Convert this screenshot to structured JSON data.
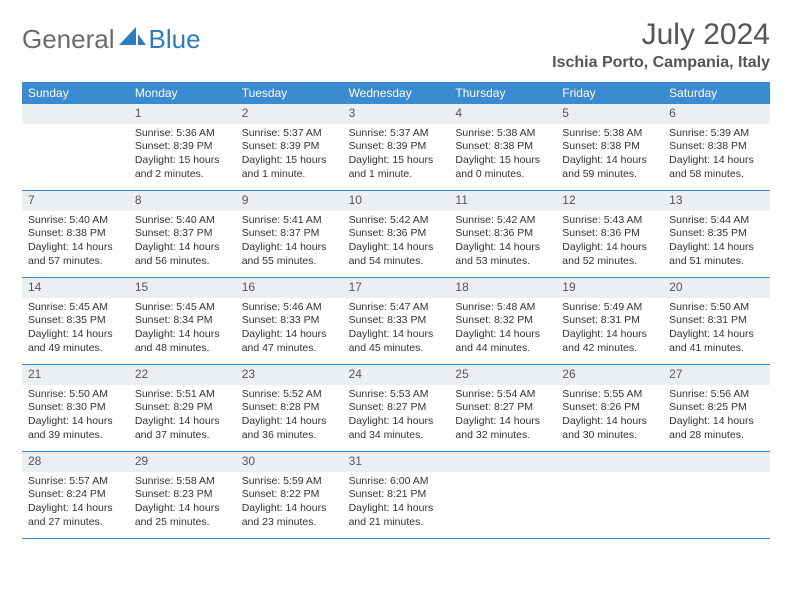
{
  "brand": {
    "text1": "General",
    "text2": "Blue",
    "logo_fill": "#2f7bc0"
  },
  "header": {
    "month_title": "July 2024",
    "location": "Ischia Porto, Campania, Italy"
  },
  "colors": {
    "header_bg": "#3a8bd0",
    "header_text": "#ffffff",
    "daynum_bg": "#eceff1",
    "row_divider": "#3a8bd0",
    "body_text": "#333333",
    "title_text": "#555555"
  },
  "weekdays": [
    "Sunday",
    "Monday",
    "Tuesday",
    "Wednesday",
    "Thursday",
    "Friday",
    "Saturday"
  ],
  "weeks": [
    [
      {
        "num": "",
        "sunrise": "",
        "sunset": "",
        "daylight": ""
      },
      {
        "num": "1",
        "sunrise": "Sunrise: 5:36 AM",
        "sunset": "Sunset: 8:39 PM",
        "daylight": "Daylight: 15 hours and 2 minutes."
      },
      {
        "num": "2",
        "sunrise": "Sunrise: 5:37 AM",
        "sunset": "Sunset: 8:39 PM",
        "daylight": "Daylight: 15 hours and 1 minute."
      },
      {
        "num": "3",
        "sunrise": "Sunrise: 5:37 AM",
        "sunset": "Sunset: 8:39 PM",
        "daylight": "Daylight: 15 hours and 1 minute."
      },
      {
        "num": "4",
        "sunrise": "Sunrise: 5:38 AM",
        "sunset": "Sunset: 8:38 PM",
        "daylight": "Daylight: 15 hours and 0 minutes."
      },
      {
        "num": "5",
        "sunrise": "Sunrise: 5:38 AM",
        "sunset": "Sunset: 8:38 PM",
        "daylight": "Daylight: 14 hours and 59 minutes."
      },
      {
        "num": "6",
        "sunrise": "Sunrise: 5:39 AM",
        "sunset": "Sunset: 8:38 PM",
        "daylight": "Daylight: 14 hours and 58 minutes."
      }
    ],
    [
      {
        "num": "7",
        "sunrise": "Sunrise: 5:40 AM",
        "sunset": "Sunset: 8:38 PM",
        "daylight": "Daylight: 14 hours and 57 minutes."
      },
      {
        "num": "8",
        "sunrise": "Sunrise: 5:40 AM",
        "sunset": "Sunset: 8:37 PM",
        "daylight": "Daylight: 14 hours and 56 minutes."
      },
      {
        "num": "9",
        "sunrise": "Sunrise: 5:41 AM",
        "sunset": "Sunset: 8:37 PM",
        "daylight": "Daylight: 14 hours and 55 minutes."
      },
      {
        "num": "10",
        "sunrise": "Sunrise: 5:42 AM",
        "sunset": "Sunset: 8:36 PM",
        "daylight": "Daylight: 14 hours and 54 minutes."
      },
      {
        "num": "11",
        "sunrise": "Sunrise: 5:42 AM",
        "sunset": "Sunset: 8:36 PM",
        "daylight": "Daylight: 14 hours and 53 minutes."
      },
      {
        "num": "12",
        "sunrise": "Sunrise: 5:43 AM",
        "sunset": "Sunset: 8:36 PM",
        "daylight": "Daylight: 14 hours and 52 minutes."
      },
      {
        "num": "13",
        "sunrise": "Sunrise: 5:44 AM",
        "sunset": "Sunset: 8:35 PM",
        "daylight": "Daylight: 14 hours and 51 minutes."
      }
    ],
    [
      {
        "num": "14",
        "sunrise": "Sunrise: 5:45 AM",
        "sunset": "Sunset: 8:35 PM",
        "daylight": "Daylight: 14 hours and 49 minutes."
      },
      {
        "num": "15",
        "sunrise": "Sunrise: 5:45 AM",
        "sunset": "Sunset: 8:34 PM",
        "daylight": "Daylight: 14 hours and 48 minutes."
      },
      {
        "num": "16",
        "sunrise": "Sunrise: 5:46 AM",
        "sunset": "Sunset: 8:33 PM",
        "daylight": "Daylight: 14 hours and 47 minutes."
      },
      {
        "num": "17",
        "sunrise": "Sunrise: 5:47 AM",
        "sunset": "Sunset: 8:33 PM",
        "daylight": "Daylight: 14 hours and 45 minutes."
      },
      {
        "num": "18",
        "sunrise": "Sunrise: 5:48 AM",
        "sunset": "Sunset: 8:32 PM",
        "daylight": "Daylight: 14 hours and 44 minutes."
      },
      {
        "num": "19",
        "sunrise": "Sunrise: 5:49 AM",
        "sunset": "Sunset: 8:31 PM",
        "daylight": "Daylight: 14 hours and 42 minutes."
      },
      {
        "num": "20",
        "sunrise": "Sunrise: 5:50 AM",
        "sunset": "Sunset: 8:31 PM",
        "daylight": "Daylight: 14 hours and 41 minutes."
      }
    ],
    [
      {
        "num": "21",
        "sunrise": "Sunrise: 5:50 AM",
        "sunset": "Sunset: 8:30 PM",
        "daylight": "Daylight: 14 hours and 39 minutes."
      },
      {
        "num": "22",
        "sunrise": "Sunrise: 5:51 AM",
        "sunset": "Sunset: 8:29 PM",
        "daylight": "Daylight: 14 hours and 37 minutes."
      },
      {
        "num": "23",
        "sunrise": "Sunrise: 5:52 AM",
        "sunset": "Sunset: 8:28 PM",
        "daylight": "Daylight: 14 hours and 36 minutes."
      },
      {
        "num": "24",
        "sunrise": "Sunrise: 5:53 AM",
        "sunset": "Sunset: 8:27 PM",
        "daylight": "Daylight: 14 hours and 34 minutes."
      },
      {
        "num": "25",
        "sunrise": "Sunrise: 5:54 AM",
        "sunset": "Sunset: 8:27 PM",
        "daylight": "Daylight: 14 hours and 32 minutes."
      },
      {
        "num": "26",
        "sunrise": "Sunrise: 5:55 AM",
        "sunset": "Sunset: 8:26 PM",
        "daylight": "Daylight: 14 hours and 30 minutes."
      },
      {
        "num": "27",
        "sunrise": "Sunrise: 5:56 AM",
        "sunset": "Sunset: 8:25 PM",
        "daylight": "Daylight: 14 hours and 28 minutes."
      }
    ],
    [
      {
        "num": "28",
        "sunrise": "Sunrise: 5:57 AM",
        "sunset": "Sunset: 8:24 PM",
        "daylight": "Daylight: 14 hours and 27 minutes."
      },
      {
        "num": "29",
        "sunrise": "Sunrise: 5:58 AM",
        "sunset": "Sunset: 8:23 PM",
        "daylight": "Daylight: 14 hours and 25 minutes."
      },
      {
        "num": "30",
        "sunrise": "Sunrise: 5:59 AM",
        "sunset": "Sunset: 8:22 PM",
        "daylight": "Daylight: 14 hours and 23 minutes."
      },
      {
        "num": "31",
        "sunrise": "Sunrise: 6:00 AM",
        "sunset": "Sunset: 8:21 PM",
        "daylight": "Daylight: 14 hours and 21 minutes."
      },
      {
        "num": "",
        "sunrise": "",
        "sunset": "",
        "daylight": ""
      },
      {
        "num": "",
        "sunrise": "",
        "sunset": "",
        "daylight": ""
      },
      {
        "num": "",
        "sunrise": "",
        "sunset": "",
        "daylight": ""
      }
    ]
  ]
}
